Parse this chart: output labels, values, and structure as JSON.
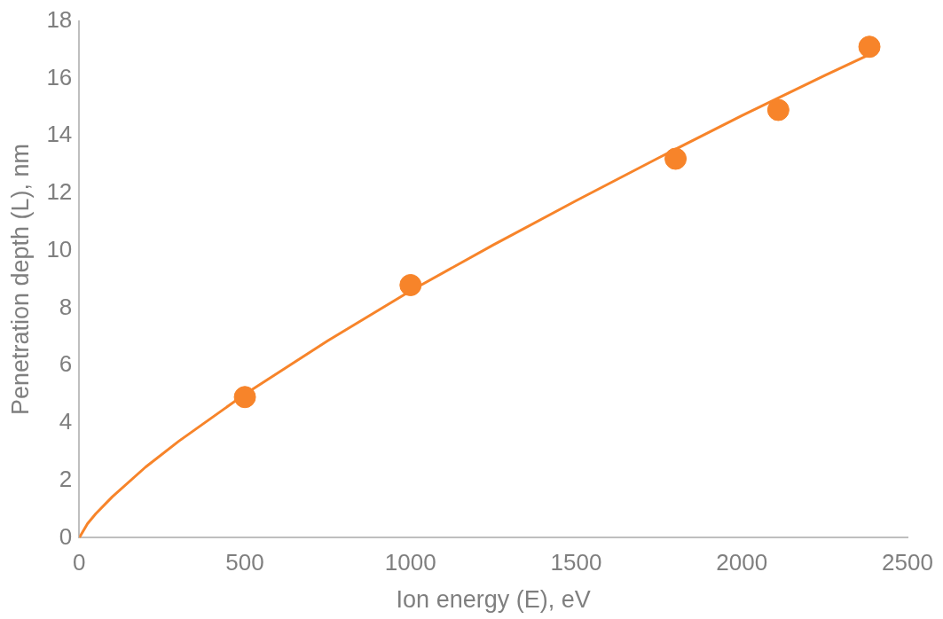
{
  "chart_data": {
    "type": "scatter",
    "xlabel": "Ion energy (E), eV",
    "ylabel": "Penetration depth (L), nm",
    "xlim": [
      0,
      2500
    ],
    "xticks": [
      0,
      500,
      1000,
      1500,
      2000,
      2500
    ],
    "ylim": [
      0,
      18
    ],
    "yticks": [
      0,
      2,
      4,
      6,
      8,
      10,
      12,
      14,
      16,
      18
    ],
    "grid": false,
    "legend": false,
    "marker": "circle",
    "series": [
      {
        "color": "#f7842a",
        "x": [
          500,
          1000,
          1800,
          2110,
          2385
        ],
        "values": [
          4.9,
          8.8,
          13.2,
          14.9,
          17.1
        ]
      },
      {
        "type": "line",
        "color": "#f7842a",
        "marker": "none",
        "line_style": "solid",
        "x": [
          0,
          25,
          50,
          100,
          200,
          300,
          500,
          750,
          1000,
          1250,
          1500,
          1750,
          2000,
          2250,
          2380
        ],
        "values": [
          0,
          0.49,
          0.84,
          1.43,
          2.46,
          3.36,
          5.0,
          6.86,
          8.6,
          10.2,
          11.74,
          13.24,
          14.7,
          16.1,
          16.8
        ]
      }
    ]
  }
}
